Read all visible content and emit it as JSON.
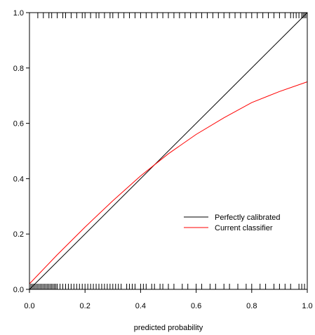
{
  "chart_data": {
    "type": "line",
    "title": "",
    "xlabel": "predicted probability",
    "ylabel": "",
    "xlim": [
      0,
      1
    ],
    "ylim": [
      0,
      1
    ],
    "x_ticks": [
      "0.0",
      "0.2",
      "0.4",
      "0.6",
      "0.8",
      "1.0"
    ],
    "y_ticks": [
      "0.0",
      "0.2",
      "0.4",
      "0.6",
      "0.8",
      "1.0"
    ],
    "grid": false,
    "legend_position": "center-right",
    "series": [
      {
        "name": "Perfectly calibrated",
        "color": "#000000",
        "x": [
          0,
          1
        ],
        "y": [
          0,
          1
        ]
      },
      {
        "name": "Current classifier",
        "color": "#ff0000",
        "x": [
          0,
          0.1,
          0.2,
          0.3,
          0.4,
          0.45,
          0.5,
          0.6,
          0.7,
          0.8,
          0.9,
          1.0
        ],
        "y": [
          0.02,
          0.125,
          0.225,
          0.32,
          0.41,
          0.45,
          0.49,
          0.56,
          0.62,
          0.675,
          0.715,
          0.75
        ]
      }
    ],
    "rug_top": [
      0.03,
      0.05,
      0.07,
      0.08,
      0.1,
      0.12,
      0.13,
      0.15,
      0.17,
      0.19,
      0.2,
      0.22,
      0.24,
      0.25,
      0.27,
      0.29,
      0.3,
      0.32,
      0.34,
      0.36,
      0.38,
      0.4,
      0.42,
      0.44,
      0.46,
      0.48,
      0.5,
      0.52,
      0.54,
      0.56,
      0.58,
      0.6,
      0.62,
      0.64,
      0.66,
      0.68,
      0.7,
      0.72,
      0.74,
      0.76,
      0.78,
      0.8,
      0.82,
      0.84,
      0.86,
      0.88,
      0.9,
      0.92,
      0.94,
      0.95,
      0.96,
      0.97,
      0.98,
      0.985,
      0.99,
      0.995,
      1.0
    ],
    "rug_bottom": [
      0.0,
      0.005,
      0.01,
      0.015,
      0.02,
      0.025,
      0.03,
      0.035,
      0.04,
      0.045,
      0.05,
      0.055,
      0.06,
      0.065,
      0.07,
      0.075,
      0.08,
      0.085,
      0.09,
      0.095,
      0.1,
      0.11,
      0.12,
      0.13,
      0.14,
      0.15,
      0.16,
      0.17,
      0.18,
      0.19,
      0.2,
      0.21,
      0.22,
      0.23,
      0.24,
      0.25,
      0.26,
      0.27,
      0.28,
      0.29,
      0.3,
      0.31,
      0.32,
      0.33,
      0.35,
      0.36,
      0.37,
      0.38,
      0.4,
      0.41,
      0.42,
      0.44,
      0.45,
      0.47,
      0.48,
      0.5,
      0.52,
      0.55,
      0.57,
      0.6,
      0.62,
      0.65,
      0.67,
      0.7,
      0.72,
      0.75,
      0.78,
      0.8,
      0.83,
      0.85,
      0.88,
      0.9,
      0.92,
      0.94,
      0.97,
      0.98,
      0.99
    ]
  }
}
